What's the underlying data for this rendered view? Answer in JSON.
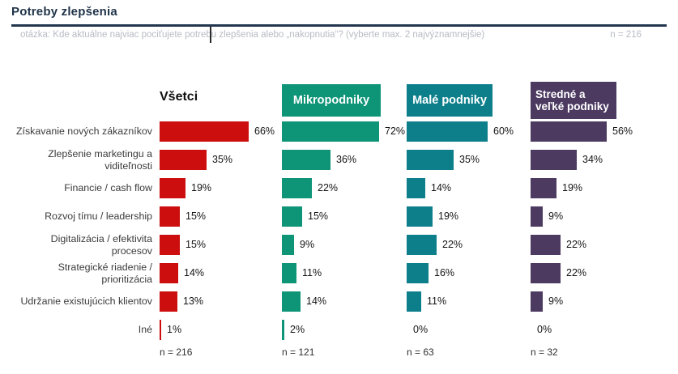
{
  "header": {
    "title": "Potreby zlepšenia",
    "question": "otázka: Kde aktuálne najviac pociťujete potrebu zlepšenia alebo „nakopnutia“? (vyberte max. 2 najvýznamnejšie)",
    "sample_label": "n = 216"
  },
  "colors": {
    "title_text": "#1f3349",
    "rule_line": "#22374e",
    "muted_text": "#b7bbc3",
    "all_red": "#cc0e0e",
    "micro_green": "#0e9477",
    "small_teal": "#0d7f8b",
    "medium_purple": "#4c3a61"
  },
  "chart_data": {
    "type": "bar",
    "orientation": "horizontal",
    "unit": "%",
    "title": "Potreby zlepšenia",
    "subtitle": "otázka: Kde aktuálne najviac pociťujete potrebu zlepšenia alebo „nakopnutia“? (vyberte max. 2 najvýznamnejšie)",
    "total_n": 216,
    "xlim": [
      0,
      80
    ],
    "grid": false,
    "legend_position": "column-headers",
    "categories": [
      "Získavanie nových zákazníkov",
      "Zlepšenie marketingu a\nviditeľnosti",
      "Financie / cash flow",
      "Rozvoj tímu / leadership",
      "Digitalizácia / efektivita\nprocesov",
      "Strategické riadenie /\nprioritizácia",
      "Udržanie existujúcich klientov",
      "Iné"
    ],
    "series": [
      {
        "name": "Všetci",
        "n_label": "n = 216",
        "n": 216,
        "color": "#cc0e0e",
        "header_filled": false,
        "values": [
          66,
          35,
          19,
          15,
          15,
          14,
          13,
          1
        ]
      },
      {
        "name": "Mikropodniky",
        "n_label": "n = 121",
        "n": 121,
        "color": "#0e9477",
        "header_filled": true,
        "values": [
          72,
          36,
          22,
          15,
          9,
          11,
          14,
          2
        ]
      },
      {
        "name": "Malé podniky",
        "n_label": "n = 63",
        "n": 63,
        "color": "#0d7f8b",
        "header_filled": true,
        "values": [
          60,
          35,
          14,
          19,
          22,
          16,
          11,
          0
        ]
      },
      {
        "name": "Stredné a veľké podniky",
        "n_label": "n = 32",
        "n": 32,
        "color": "#4c3a61",
        "header_filled": true,
        "values": [
          56,
          34,
          19,
          9,
          22,
          22,
          9,
          0
        ]
      }
    ]
  }
}
